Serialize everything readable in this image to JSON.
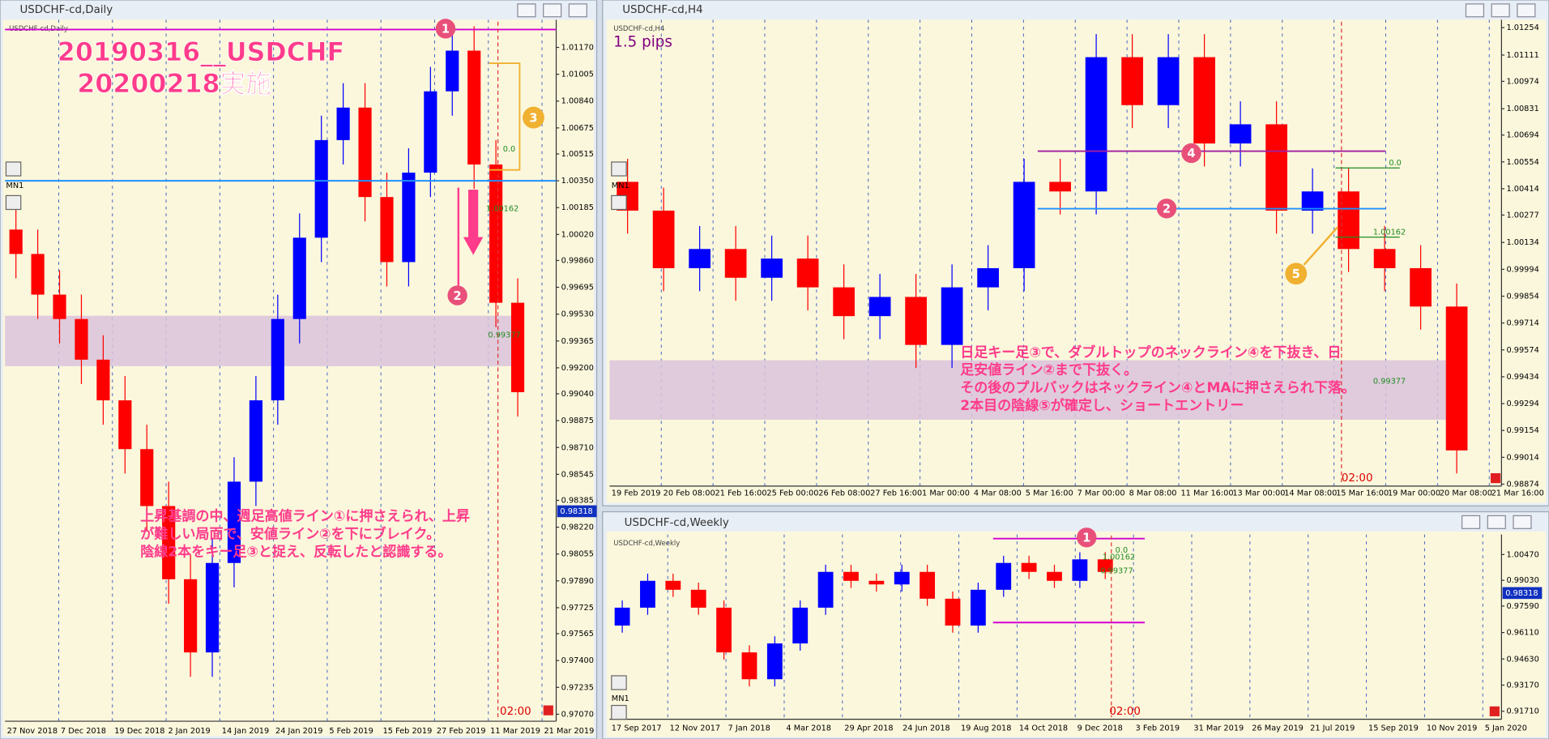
{
  "chart_data": [
    {
      "type": "candlestick",
      "window_title": "USDCHF-cd,Daily",
      "symbol_label": "USDCHF-cd,Daily",
      "side_button": "MN1",
      "ylim": [
        0.97027,
        1.0134
      ],
      "yticks": [
        {
          "value": 1.0117,
          "label": "1.01170"
        },
        1.01005,
        {
          "value": 1.0084,
          "label": "1.00840"
        },
        1.00675,
        1.00515,
        {
          "value": 1.0035,
          "label": "1.00350"
        },
        1.00185,
        {
          "value": 1.0002,
          "label": "1.00020"
        },
        {
          "value": 0.9986,
          "label": "0.99860"
        },
        0.99695,
        {
          "value": 0.9953,
          "label": "0.99530"
        },
        0.99365,
        {
          "value": 0.992,
          "label": "0.99200"
        },
        {
          "value": 0.9904,
          "label": "0.99040"
        },
        0.98875,
        {
          "value": 0.9871,
          "label": "0.98710"
        },
        0.98545,
        0.98385,
        {
          "value": 0.9822,
          "label": "0.98220"
        },
        0.98055,
        {
          "value": 0.9789,
          "label": "0.97890"
        },
        0.97725,
        0.97565,
        {
          "value": 0.974,
          "label": "0.97400"
        },
        0.97235,
        {
          "value": 0.9707,
          "label": "0.97070"
        }
      ],
      "price": 0.98318,
      "x_labels": [
        "27 Nov 2018",
        "7 Dec 2018",
        "19 Dec 2018",
        "2 Jan 2019",
        "14 Jan 2019",
        "24 Jan 2019",
        "5 Feb 2019",
        "15 Feb 2019",
        "27 Feb 2019",
        "11 Mar 2019",
        "21 Mar 2019"
      ],
      "open": [
        1.0005,
        0.999,
        0.9965,
        0.995,
        0.9925,
        0.99,
        0.987,
        0.9835,
        0.979,
        0.9745,
        0.98,
        0.985,
        0.99,
        0.995,
        1.0,
        1.006,
        1.008,
        1.0025,
        0.9985,
        1.004,
        1.009,
        1.0115,
        1.0045,
        0.996
      ],
      "high": [
        1.002,
        1.0005,
        0.998,
        0.9965,
        0.994,
        0.9915,
        0.9885,
        0.985,
        0.9805,
        0.9815,
        0.9865,
        0.9915,
        0.9965,
        1.0015,
        1.0075,
        1.0095,
        1.0095,
        1.004,
        1.0055,
        1.0105,
        1.013,
        1.013,
        1.006,
        0.9975
      ],
      "low": [
        0.9975,
        0.995,
        0.9935,
        0.991,
        0.9885,
        0.9855,
        0.982,
        0.9775,
        0.973,
        0.973,
        0.9785,
        0.9835,
        0.9885,
        0.9935,
        0.9985,
        1.0045,
        1.001,
        0.997,
        0.997,
        1.0025,
        1.0075,
        1.003,
        0.9945,
        0.989
      ],
      "close": [
        0.999,
        0.9965,
        0.995,
        0.9925,
        0.99,
        0.987,
        0.9835,
        0.979,
        0.9745,
        0.98,
        0.985,
        0.99,
        0.995,
        1.0,
        1.006,
        1.008,
        1.0025,
        0.9985,
        1.004,
        1.009,
        1.0115,
        1.0045,
        0.996,
        0.9905
      ],
      "up_color": "#0000ff",
      "down_color": "#ff0000",
      "zone": [
        0.9921,
        0.9952
      ],
      "zone_color": "#d9c3dc",
      "lines": [
        {
          "value": 1.0128,
          "color": "#d400d4"
        },
        {
          "value": 1.0035,
          "color": "#1e90ff"
        }
      ],
      "annotations": [
        "20190316__USDCHF",
        "20200218実施",
        "上昇基調の中、週足高値ライン①に押さえられ、上昇",
        "が難しい局面で、安値ライン②を下にブレイク。",
        "陰線2本をキー足③と捉え、反転したと認識する。",
        "1",
        "2",
        "3",
        "0.0",
        "1.00162",
        "0.99377",
        "02:00"
      ]
    },
    {
      "type": "candlestick",
      "window_title": "USDCHF-cd,H4",
      "symbol_label": "USDCHF-cd,H4",
      "side_button": "MN1",
      "ylim": [
        0.98864,
        1.01295
      ],
      "yticks": [
        1.01254,
        1.01111,
        1.00974,
        1.00831,
        1.00694,
        1.00554,
        1.00414,
        1.00277,
        1.00134,
        0.99994,
        0.99854,
        0.99714,
        0.99574,
        0.99434,
        0.99294,
        0.99154,
        0.99014,
        0.98874
      ],
      "x_labels": [
        "19 Feb 2019",
        "20 Feb 08:00",
        "21 Feb 16:00",
        "25 Feb 00:00",
        "26 Feb 08:00",
        "27 Feb 16:00",
        "1 Mar 00:00",
        "4 Mar 08:00",
        "5 Mar 16:00",
        "7 Mar 00:00",
        "8 Mar 08:00",
        "11 Mar 16:00",
        "13 Mar 00:00",
        "14 Mar 08:00",
        "15 Mar 16:00",
        "19 Mar 00:00",
        "20 Mar 08:00",
        "21 Mar 16:00"
      ],
      "open": [
        1.0045,
        1.003,
        1.0,
        1.001,
        0.9995,
        1.0005,
        0.999,
        0.9975,
        0.9985,
        0.996,
        0.999,
        1.0,
        1.0045,
        1.004,
        1.011,
        1.0085,
        1.011,
        1.0065,
        1.0075,
        1.003,
        1.004,
        1.001,
        1.0,
        0.998
      ],
      "high": [
        1.0057,
        1.0042,
        1.0022,
        1.0022,
        1.0017,
        1.0017,
        1.0002,
        0.9997,
        0.9997,
        1.0002,
        1.0012,
        1.0057,
        1.0057,
        1.0122,
        1.0122,
        1.0122,
        1.0122,
        1.0087,
        1.0087,
        1.0052,
        1.0052,
        1.0022,
        1.0012,
        0.9992
      ],
      "low": [
        1.0018,
        0.9988,
        0.9988,
        0.9983,
        0.9983,
        0.9978,
        0.9963,
        0.9963,
        0.9948,
        0.9948,
        0.9978,
        0.9988,
        1.0028,
        1.0028,
        1.0073,
        1.0073,
        1.0053,
        1.0053,
        1.0018,
        1.0018,
        0.9998,
        0.9988,
        0.9968,
        0.9893
      ],
      "close": [
        1.003,
        1.0,
        1.001,
        0.9995,
        1.0005,
        0.999,
        0.9975,
        0.9985,
        0.996,
        0.999,
        1.0,
        1.0045,
        1.004,
        1.011,
        1.0085,
        1.011,
        1.0065,
        1.0075,
        1.003,
        1.004,
        1.001,
        1.0,
        0.998,
        0.9905
      ],
      "up_color": "#0000ff",
      "down_color": "#ff0000",
      "zone": [
        0.9921,
        0.9952
      ],
      "zone_color": "#d9c3dc",
      "lines": [
        {
          "value": 1.0061,
          "color": "#a020a0"
        },
        {
          "value": 1.0031,
          "color": "#1e90ff"
        }
      ],
      "annotations": [
        "1.5 pips",
        "日足キー足③で、ダブルトップのネックライン④を下抜き、日",
        "足安値ライン②まで下抜く。",
        "その後のプルバックはネックライン④とMAに押さえられ下落。",
        "2本目の陰線⑤が確定し、ショートエントリー",
        "2",
        "4",
        "5",
        "0.0",
        "1.00162",
        "0.99377",
        "02:00"
      ]
    },
    {
      "type": "candlestick",
      "window_title": "USDCHF-cd,Weekly",
      "symbol_label": "USDCHF-cd,Weekly",
      "side_button": "MN1",
      "ylim": [
        0.91263,
        1.0159
      ],
      "yticks": [
        {
          "value": 1.0047,
          "label": "1.00470"
        },
        {
          "value": 0.9903,
          "label": "0.99030"
        },
        {
          "value": 0.9759,
          "label": "0.97590"
        },
        {
          "value": 0.9611,
          "label": "0.96110"
        },
        {
          "value": 0.9463,
          "label": "0.94630"
        },
        {
          "value": 0.9317,
          "label": "0.93170"
        },
        {
          "value": 0.9171,
          "label": "0.91710"
        }
      ],
      "price": 0.98318,
      "x_labels": [
        "17 Sep 2017",
        "12 Nov 2017",
        "7 Jan 2018",
        "4 Mar 2018",
        "29 Apr 2018",
        "24 Jun 2018",
        "19 Aug 2018",
        "14 Oct 2018",
        "9 Dec 2018",
        "3 Feb 2019",
        "31 Mar 2019",
        "26 May 2019",
        "21 Jul 2019",
        "15 Sep 2019",
        "10 Nov 2019",
        "5 Jan 2020"
      ],
      "open": [
        0.965,
        0.975,
        0.99,
        0.985,
        0.975,
        0.95,
        0.935,
        0.955,
        0.975,
        0.995,
        0.99,
        0.988,
        0.995,
        0.98,
        0.965,
        0.985,
        1.0,
        0.995,
        0.99,
        1.002
      ],
      "high": [
        0.979,
        0.994,
        0.994,
        0.989,
        0.979,
        0.954,
        0.959,
        0.979,
        0.999,
        0.999,
        0.994,
        0.999,
        0.999,
        0.984,
        0.989,
        1.004,
        1.004,
        0.999,
        1.006,
        1.006
      ],
      "low": [
        0.961,
        0.971,
        0.981,
        0.971,
        0.946,
        0.931,
        0.931,
        0.951,
        0.971,
        0.986,
        0.984,
        0.984,
        0.976,
        0.961,
        0.961,
        0.981,
        0.991,
        0.986,
        0.986,
        0.991
      ],
      "close": [
        0.975,
        0.99,
        0.985,
        0.975,
        0.95,
        0.935,
        0.955,
        0.975,
        0.995,
        0.99,
        0.988,
        0.995,
        0.98,
        0.965,
        0.985,
        1.0,
        0.995,
        0.99,
        1.002,
        0.995
      ],
      "up_color": "#0000ff",
      "down_color": "#ff0000",
      "lines": [
        {
          "value": 1.0136,
          "color": "#d400d4"
        },
        {
          "value": 0.9667,
          "color": "#d400d4"
        }
      ],
      "annotations": [
        "1",
        "0.0",
        "1.00162",
        "0.99377",
        "02:00"
      ]
    }
  ]
}
